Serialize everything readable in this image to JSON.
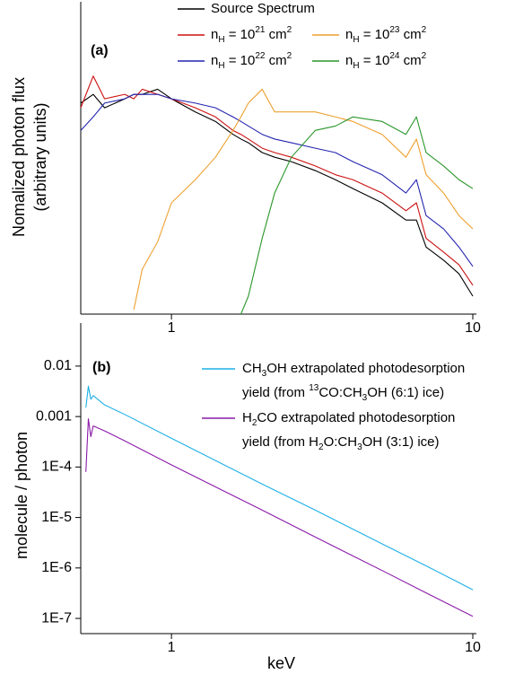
{
  "chart_data": [
    {
      "type": "line",
      "title": "(a)",
      "ylabel": [
        "Nomalized photon flux",
        "(arbitrary units)"
      ],
      "xscale": "log",
      "yscale": "log",
      "xlim": [
        0.5,
        10
      ],
      "ylim": [
        1e-05,
        1
      ],
      "xticks": [
        1,
        10
      ],
      "x": [
        0.5,
        0.55,
        0.6,
        0.7,
        0.75,
        0.8,
        0.9,
        1,
        1.2,
        1.4,
        1.6,
        1.7,
        1.8,
        2,
        2.2,
        2.5,
        3,
        3.5,
        4,
        5,
        6,
        6.5,
        7,
        8,
        9,
        10
      ],
      "series": [
        {
          "name": "Source Spectrum",
          "color": "#000000",
          "values": [
            0.062,
            0.089,
            0.051,
            0.074,
            0.089,
            0.089,
            0.11,
            0.074,
            0.043,
            0.029,
            0.017,
            0.014,
            0.012,
            0.008,
            0.0066,
            0.0055,
            0.0038,
            0.0026,
            0.0018,
            0.001,
            0.00049,
            0.00049,
            0.00016,
            9.3e-05,
            5.3e-05,
            2.1e-05
          ]
        },
        {
          "name": "nH = 1021 cm2",
          "color": "#cc1010",
          "values": [
            0.051,
            0.19,
            0.074,
            0.089,
            0.074,
            0.11,
            0.089,
            0.074,
            0.051,
            0.035,
            0.02,
            0.017,
            0.014,
            0.0096,
            0.008,
            0.0066,
            0.0046,
            0.0032,
            0.0026,
            0.0015,
            0.00072,
            0.001,
            0.00023,
            0.00013,
            7.7e-05,
            3.3e-05
          ]
        },
        {
          "name": "nH = 1022 cm2",
          "color": "#2424b0",
          "values": [
            0.02,
            0.035,
            0.062,
            0.074,
            0.089,
            0.089,
            0.089,
            0.074,
            0.062,
            0.051,
            0.035,
            0.029,
            0.024,
            0.017,
            0.014,
            0.012,
            0.0096,
            0.008,
            0.0055,
            0.0032,
            0.0015,
            0.0026,
            0.00059,
            0.00034,
            0.00016,
            7.2e-05
          ]
        },
        {
          "name": "nH = 1023 cm2",
          "color": "#eea030",
          "values": [
            null,
            null,
            null,
            null,
            1.2e-05,
            6.4e-05,
            0.0002,
            0.001,
            0.0026,
            0.0066,
            0.02,
            0.035,
            0.062,
            0.11,
            0.043,
            0.043,
            0.043,
            0.035,
            0.029,
            0.017,
            0.0066,
            0.014,
            0.0032,
            0.0015,
            0.00059,
            0.00034
          ]
        },
        {
          "name": "nH = 1024 cm2",
          "color": "#2a962a",
          "values": [
            null,
            null,
            null,
            null,
            null,
            null,
            null,
            null,
            null,
            null,
            null,
            1e-05,
            2.1e-05,
            0.00023,
            0.0015,
            0.0066,
            0.02,
            0.024,
            0.035,
            0.029,
            0.017,
            0.035,
            0.008,
            0.0046,
            0.0026,
            0.0018
          ]
        }
      ]
    },
    {
      "type": "line",
      "title": "(b)",
      "xlabel": "keV",
      "ylabel": "molecule / photon",
      "xscale": "log",
      "yscale": "log",
      "xlim": [
        0.5,
        10
      ],
      "ylim": [
        5e-08,
        0.015
      ],
      "xticks": [
        1,
        10
      ],
      "yticks": [
        0.01,
        0.001,
        {
          "value": 0.0001,
          "label": "1E-4"
        },
        {
          "value": 1e-05,
          "label": "1E-5"
        },
        {
          "value": 1e-06,
          "label": "1E-6"
        },
        {
          "value": 1e-07,
          "label": "1E-7"
        }
      ],
      "x": [
        0.52,
        0.53,
        0.54,
        0.55,
        0.6,
        0.7,
        1,
        2,
        3,
        5,
        7,
        10
      ],
      "series": [
        {
          "name": "CH3OH extrapolated photodesorption yield (from 13CO:CH3OH (6:1) ice)",
          "color": "#1cb0e6",
          "values": [
            0.0015,
            0.004,
            0.0022,
            0.0026,
            0.0017,
            0.0011,
            0.00037,
            4.6e-05,
            1.4e-05,
            3e-06,
            1.1e-06,
            3.7e-07
          ]
        },
        {
          "name": "H2CO extrapolated photodesorption yield (from H2O:CH3OH (3:1) ice)",
          "color": "#8a1aa8",
          "values": [
            8e-05,
            0.0009,
            0.0004,
            0.00065,
            0.00052,
            0.00033,
            0.00011,
            1.4e-05,
            4.1e-06,
            8.9e-07,
            3.2e-07,
            1.1e-07
          ]
        }
      ]
    }
  ]
}
